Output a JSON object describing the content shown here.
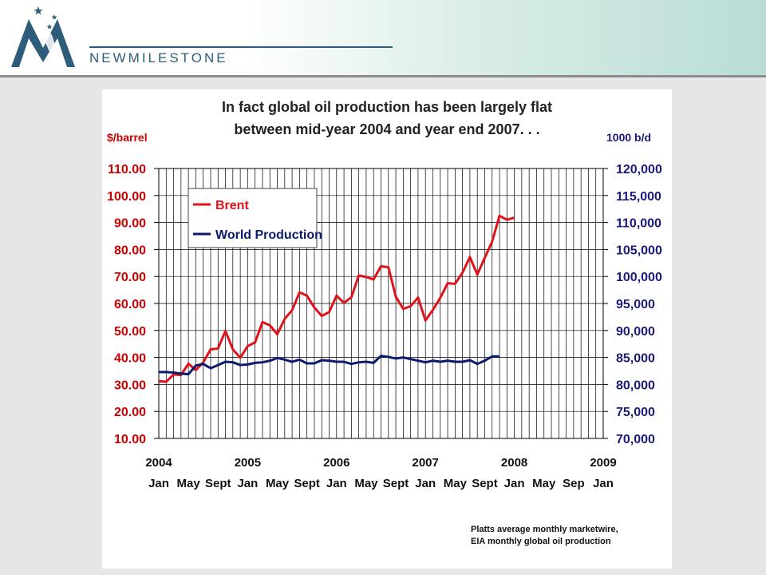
{
  "brand": {
    "name": "NEWMILESTONE"
  },
  "colors": {
    "brent": "#e2121b",
    "production": "#0b1a6e",
    "left_axis": "#cc0000",
    "right_axis": "#1a1a7a"
  },
  "chart_data": {
    "type": "line",
    "title_line1": "In fact global oil production has been largely flat",
    "title_line2": "between mid-year 2004 and year end 2007. . .",
    "ylabel_left": "$/barrel",
    "ylabel_right": "1000 b/d",
    "ylim_left": [
      10,
      110
    ],
    "ylim_right": [
      70000,
      120000
    ],
    "y_ticks_left": [
      "10.00",
      "20.00",
      "30.00",
      "40.00",
      "50.00",
      "60.00",
      "70.00",
      "80.00",
      "90.00",
      "100.00",
      "110.00"
    ],
    "y_ticks_right": [
      "70,000",
      "75,000",
      "80,000",
      "85,000",
      "90,000",
      "95,000",
      "100,000",
      "105,000",
      "110,000",
      "115,000",
      "120,000"
    ],
    "x_year_labels": [
      "2004",
      "2005",
      "2006",
      "2007",
      "2008",
      "2009"
    ],
    "x_month_labels": [
      "Jan",
      "May",
      "Sept",
      "Jan",
      "May",
      "Sept",
      "Jan",
      "May",
      "Sept",
      "Jan",
      "May",
      "Sept",
      "Jan",
      "May",
      "Sep",
      "Jan"
    ],
    "legend_position": "top-left",
    "grid": true,
    "series": [
      {
        "name": "Brent",
        "axis": "left",
        "values": [
          31.2,
          31.0,
          33.7,
          33.5,
          37.7,
          35.3,
          38.2,
          43.0,
          43.3,
          49.8,
          43.0,
          39.9,
          44.2,
          45.6,
          53.1,
          51.9,
          48.6,
          54.3,
          57.5,
          64.1,
          62.9,
          58.5,
          55.4,
          56.8,
          62.9,
          60.2,
          62.3,
          70.4,
          69.8,
          68.9,
          73.8,
          73.4,
          62.5,
          58.0,
          59.0,
          62.2,
          53.7,
          57.6,
          62.1,
          67.5,
          67.3,
          71.4,
          77.2,
          70.7,
          76.9,
          82.9,
          92.5,
          91.0,
          91.8
        ]
      },
      {
        "name": "World Production",
        "axis": "right",
        "values": [
          82300,
          82300,
          82200,
          82000,
          81900,
          83500,
          83800,
          83000,
          83600,
          84200,
          84100,
          83600,
          83700,
          84000,
          84100,
          84400,
          84900,
          84600,
          84200,
          84600,
          83900,
          83900,
          84500,
          84400,
          84200,
          84200,
          83800,
          84100,
          84200,
          84000,
          85300,
          85100,
          84800,
          85000,
          84700,
          84400,
          84100,
          84400,
          84200,
          84400,
          84200,
          84200,
          84500,
          83800,
          84400,
          85200,
          85200
        ]
      }
    ]
  },
  "source_line1": "Platts average monthly  marketwire,",
  "source_line2": "EIA monthly global oil production"
}
